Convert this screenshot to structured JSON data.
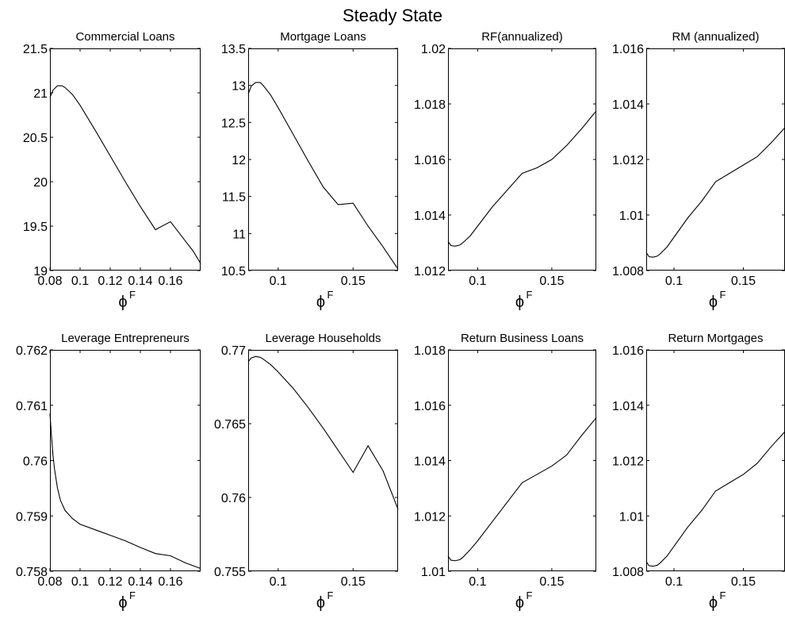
{
  "figure": {
    "suptitle": "Steady State"
  },
  "chart_data": [
    {
      "type": "line",
      "title": "Commercial Loans",
      "xlabel": "ϕ",
      "xlabel_superscript": "F",
      "xlim": [
        0.08,
        0.18
      ],
      "ylim": [
        19,
        21.5
      ],
      "xticks": [
        0.08,
        0.1,
        0.12,
        0.14,
        0.16
      ],
      "xtick_labels": [
        "0.08",
        "0.1",
        "0.12",
        "0.14",
        "0.16"
      ],
      "yticks": [
        19,
        19.5,
        20,
        20.5,
        21,
        21.5
      ],
      "ytick_labels": [
        "19",
        "19.5",
        "20",
        "20.5",
        "21",
        "21.5"
      ],
      "grid": false,
      "x": [
        0.08,
        0.082,
        0.085,
        0.088,
        0.09,
        0.095,
        0.1,
        0.11,
        0.12,
        0.13,
        0.14,
        0.15,
        0.16,
        0.17,
        0.175,
        0.18
      ],
      "y": [
        20.95,
        21.03,
        21.08,
        21.08,
        21.06,
        20.98,
        20.86,
        20.58,
        20.29,
        20.0,
        19.72,
        19.46,
        19.55,
        19.33,
        19.22,
        19.08
      ]
    },
    {
      "type": "line",
      "title": "Mortgage Loans",
      "xlabel": "ϕ",
      "xlabel_superscript": "F",
      "xlim": [
        0.08,
        0.18
      ],
      "ylim": [
        10.5,
        13.5
      ],
      "xticks": [
        0.1,
        0.15
      ],
      "xtick_labels": [
        "0.1",
        "0.15"
      ],
      "yticks": [
        10.5,
        11,
        11.5,
        12,
        12.5,
        13,
        13.5
      ],
      "ytick_labels": [
        "10.5",
        "11",
        "11.5",
        "12",
        "12.5",
        "13",
        "13.5"
      ],
      "grid": false,
      "x": [
        0.08,
        0.082,
        0.085,
        0.088,
        0.09,
        0.095,
        0.1,
        0.11,
        0.12,
        0.13,
        0.14,
        0.15,
        0.16,
        0.17,
        0.18
      ],
      "y": [
        12.88,
        12.99,
        13.04,
        13.04,
        13.0,
        12.87,
        12.7,
        12.34,
        11.98,
        11.63,
        11.39,
        11.41,
        11.1,
        10.82,
        10.52
      ]
    },
    {
      "type": "line",
      "title": "RF(annualized)",
      "xlabel": "ϕ",
      "xlabel_superscript": "F",
      "xlim": [
        0.08,
        0.18
      ],
      "ylim": [
        1.012,
        1.02
      ],
      "xticks": [
        0.1,
        0.15
      ],
      "xtick_labels": [
        "0.1",
        "0.15"
      ],
      "yticks": [
        1.012,
        1.014,
        1.016,
        1.018,
        1.02
      ],
      "ytick_labels": [
        "1.012",
        "1.014",
        "1.016",
        "1.018",
        "1.02"
      ],
      "grid": false,
      "x": [
        0.08,
        0.082,
        0.085,
        0.088,
        0.09,
        0.095,
        0.1,
        0.11,
        0.12,
        0.13,
        0.14,
        0.15,
        0.16,
        0.17,
        0.18
      ],
      "y": [
        1.01305,
        1.0129,
        1.01288,
        1.01292,
        1.013,
        1.01325,
        1.0136,
        1.0143,
        1.0149,
        1.0155,
        1.0157,
        1.016,
        1.0165,
        1.0171,
        1.01775
      ]
    },
    {
      "type": "line",
      "title": "RM (annualized)",
      "xlabel": "ϕ",
      "xlabel_superscript": "F",
      "xlim": [
        0.08,
        0.18
      ],
      "ylim": [
        1.008,
        1.016
      ],
      "xticks": [
        0.1,
        0.15
      ],
      "xtick_labels": [
        "0.1",
        "0.15"
      ],
      "yticks": [
        1.008,
        1.01,
        1.012,
        1.014,
        1.016
      ],
      "ytick_labels": [
        "1.008",
        "1.01",
        "1.012",
        "1.014",
        "1.016"
      ],
      "grid": false,
      "x": [
        0.08,
        0.082,
        0.085,
        0.088,
        0.09,
        0.095,
        0.1,
        0.11,
        0.12,
        0.13,
        0.14,
        0.15,
        0.16,
        0.17,
        0.18
      ],
      "y": [
        1.00865,
        1.0085,
        1.00848,
        1.00852,
        1.0086,
        1.00885,
        1.0092,
        1.0099,
        1.0105,
        1.0112,
        1.0115,
        1.0118,
        1.0121,
        1.0126,
        1.01315
      ]
    },
    {
      "type": "line",
      "title": "Leverage Entrepreneurs",
      "xlabel": "ϕ",
      "xlabel_superscript": "F",
      "xlim": [
        0.08,
        0.18
      ],
      "ylim": [
        0.758,
        0.762
      ],
      "xticks": [
        0.08,
        0.1,
        0.12,
        0.14,
        0.16
      ],
      "xtick_labels": [
        "0.08",
        "0.1",
        "0.12",
        "0.14",
        "0.16"
      ],
      "yticks": [
        0.758,
        0.759,
        0.76,
        0.761,
        0.762
      ],
      "ytick_labels": [
        "0.758",
        "0.759",
        "0.76",
        "0.761",
        "0.762"
      ],
      "grid": false,
      "x": [
        0.08,
        0.081,
        0.082,
        0.083,
        0.085,
        0.087,
        0.09,
        0.095,
        0.1,
        0.11,
        0.12,
        0.13,
        0.14,
        0.15,
        0.16,
        0.17,
        0.18
      ],
      "y": [
        0.76085,
        0.76045,
        0.7601,
        0.75985,
        0.7595,
        0.75928,
        0.7591,
        0.75895,
        0.75885,
        0.75875,
        0.75865,
        0.75855,
        0.75843,
        0.75832,
        0.75828,
        0.75815,
        0.75805
      ]
    },
    {
      "type": "line",
      "title": "Leverage Households",
      "xlabel": "ϕ",
      "xlabel_superscript": "F",
      "xlim": [
        0.08,
        0.18
      ],
      "ylim": [
        0.755,
        0.77
      ],
      "xticks": [
        0.1,
        0.15
      ],
      "xtick_labels": [
        "0.1",
        "0.15"
      ],
      "yticks": [
        0.755,
        0.76,
        0.765,
        0.77
      ],
      "ytick_labels": [
        "0.755",
        "0.76",
        "0.765",
        "0.77"
      ],
      "grid": false,
      "x": [
        0.08,
        0.082,
        0.085,
        0.088,
        0.09,
        0.095,
        0.1,
        0.11,
        0.12,
        0.13,
        0.14,
        0.15,
        0.16,
        0.17,
        0.18
      ],
      "y": [
        0.7692,
        0.76945,
        0.76955,
        0.7695,
        0.76938,
        0.769,
        0.7685,
        0.7674,
        0.7661,
        0.7647,
        0.7632,
        0.7617,
        0.7635,
        0.7618,
        0.7592
      ]
    },
    {
      "type": "line",
      "title": "Return Business Loans",
      "xlabel": "ϕ",
      "xlabel_superscript": "F",
      "xlim": [
        0.08,
        0.18
      ],
      "ylim": [
        1.01,
        1.018
      ],
      "xticks": [
        0.1,
        0.15
      ],
      "xtick_labels": [
        "0.1",
        "0.15"
      ],
      "yticks": [
        1.01,
        1.012,
        1.014,
        1.016,
        1.018
      ],
      "ytick_labels": [
        "1.01",
        "1.012",
        "1.014",
        "1.016",
        "1.018"
      ],
      "grid": false,
      "x": [
        0.08,
        0.082,
        0.085,
        0.088,
        0.09,
        0.095,
        0.1,
        0.11,
        0.12,
        0.13,
        0.14,
        0.15,
        0.16,
        0.17,
        0.18
      ],
      "y": [
        1.01055,
        1.0104,
        1.01038,
        1.01042,
        1.0105,
        1.01078,
        1.0111,
        1.0118,
        1.0125,
        1.0132,
        1.0135,
        1.0138,
        1.0142,
        1.0149,
        1.01555
      ]
    },
    {
      "type": "line",
      "title": "Return Mortgages",
      "xlabel": "ϕ",
      "xlabel_superscript": "F",
      "xlim": [
        0.08,
        0.18
      ],
      "ylim": [
        1.008,
        1.016
      ],
      "xticks": [
        0.1,
        0.15
      ],
      "xtick_labels": [
        "0.1",
        "0.15"
      ],
      "yticks": [
        1.008,
        1.01,
        1.012,
        1.014,
        1.016
      ],
      "ytick_labels": [
        "1.008",
        "1.01",
        "1.012",
        "1.014",
        "1.016"
      ],
      "grid": false,
      "x": [
        0.08,
        0.082,
        0.085,
        0.088,
        0.09,
        0.095,
        0.1,
        0.11,
        0.12,
        0.13,
        0.14,
        0.15,
        0.16,
        0.17,
        0.18
      ],
      "y": [
        1.00835,
        1.0082,
        1.00818,
        1.00822,
        1.0083,
        1.00855,
        1.0089,
        1.0096,
        1.0102,
        1.0109,
        1.0112,
        1.0115,
        1.0119,
        1.0125,
        1.01305
      ]
    }
  ]
}
